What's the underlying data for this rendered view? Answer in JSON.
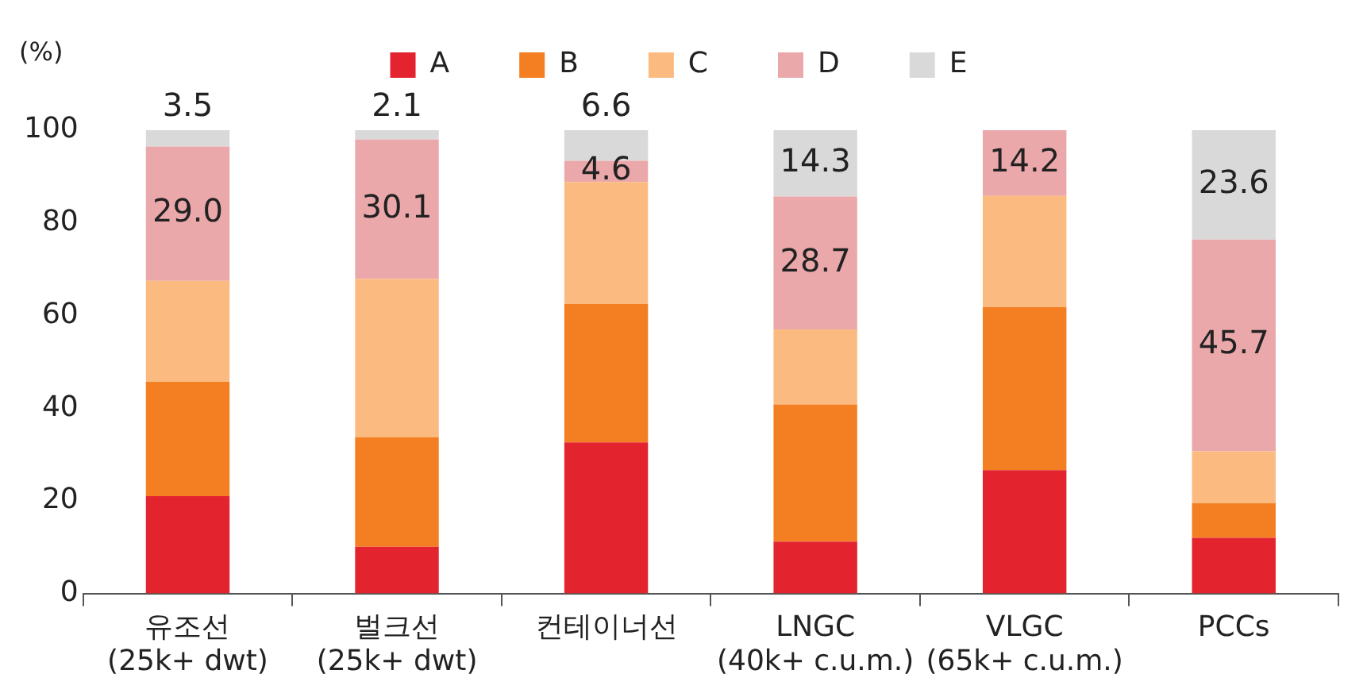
{
  "chart_data": {
    "type": "bar",
    "stacked": true,
    "ylabel": "(%)",
    "categories": [
      "유조선\n(25k+ dwt)",
      "벌크선\n(25k+ dwt)",
      "컨테이너선",
      "LNGC\n(40k+ c.u.m.)",
      "VLGC\n(65k+ c.u.m.)",
      "PCCs"
    ],
    "series": [
      {
        "name": "A",
        "color": "#e3242f",
        "values": [
          21.0,
          10.1,
          32.6,
          11.2,
          26.6,
          12.0
        ]
      },
      {
        "name": "B",
        "color": "#f37f22",
        "values": [
          24.7,
          23.6,
          29.9,
          29.6,
          35.2,
          7.5
        ]
      },
      {
        "name": "C",
        "color": "#fbbb80",
        "values": [
          21.8,
          34.2,
          26.3,
          16.2,
          24.0,
          11.2
        ]
      },
      {
        "name": "D",
        "color": "#eba8aa",
        "values": [
          29.0,
          30.1,
          4.6,
          28.7,
          14.2,
          45.7
        ],
        "value_labels": [
          "29.0",
          "30.1",
          "4.6",
          "28.7",
          "14.2",
          "45.7"
        ]
      },
      {
        "name": "E",
        "color": "#d9d9d9",
        "values": [
          3.5,
          2.1,
          6.6,
          14.3,
          null,
          23.6
        ],
        "value_labels": [
          "3.5",
          "2.1",
          "6.6",
          "14.3",
          null,
          "23.6"
        ]
      }
    ],
    "ylim": [
      0,
      100
    ],
    "yticks": [
      0,
      20,
      40,
      60,
      80,
      100
    ],
    "grid": false,
    "legend": "top",
    "marker": "square"
  }
}
